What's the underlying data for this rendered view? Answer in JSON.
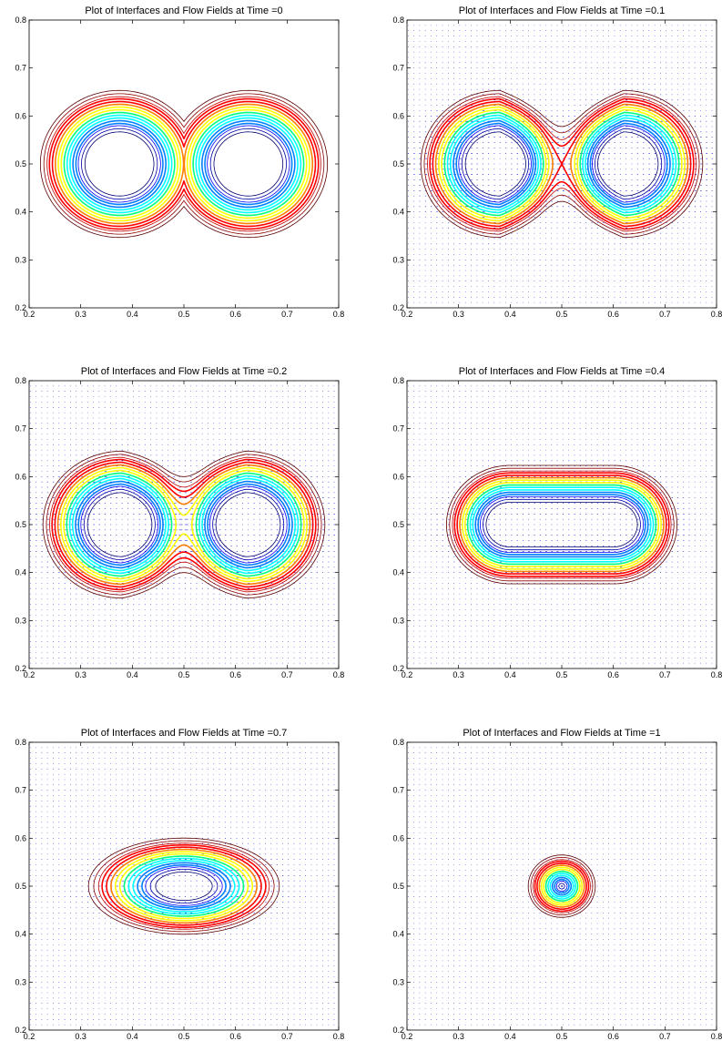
{
  "figure": {
    "colors": {
      "arrow": "#0000d0",
      "contours_outer": [
        "#5a0000",
        "#8b0000",
        "#c00000"
      ],
      "contours_inner": [
        "#00006e",
        "#0000a8",
        "#0000ff"
      ],
      "rainbow": [
        "#ff0000",
        "#ff7f00",
        "#ffff00",
        "#00ff7f",
        "#00ffff",
        "#0080ff"
      ]
    }
  },
  "chart_data": [
    {
      "type": "contour",
      "title": "Plot of Interfaces and Flow Fields at Time =0",
      "time": 0,
      "xlim": [
        0.2,
        0.8
      ],
      "ylim": [
        0.2,
        0.8
      ],
      "xticks": [
        "0.2",
        "0.3",
        "0.4",
        "0.5",
        "0.6",
        "0.7",
        "0.8"
      ],
      "yticks": [
        "0.2",
        "0.3",
        "0.4",
        "0.5",
        "0.6",
        "0.7",
        "0.8"
      ],
      "interface": {
        "shape": "two-circles",
        "centers": [
          [
            0.375,
            0.5
          ],
          [
            0.625,
            0.5
          ]
        ],
        "radius": 0.11,
        "band_half_width": 0.027
      },
      "flow_field": false
    },
    {
      "type": "contour",
      "title": "Plot of Interfaces and Flow Fields at Time =0.1",
      "time": 0.1,
      "xlim": [
        0.2,
        0.8
      ],
      "ylim": [
        0.2,
        0.8
      ],
      "xticks": [
        "0.2",
        "0.3",
        "0.4",
        "0.5",
        "0.6",
        "0.7",
        "0.8"
      ],
      "yticks": [
        "0.2",
        "0.3",
        "0.4",
        "0.5",
        "0.6",
        "0.7",
        "0.8"
      ],
      "interface": {
        "shape": "peanut",
        "centers": [
          [
            0.38,
            0.5
          ],
          [
            0.62,
            0.5
          ]
        ],
        "radius": 0.11,
        "band_half_width": 0.027,
        "waist_depth": 0.025
      },
      "flow_field": true,
      "flow_strength": 1.0
    },
    {
      "type": "contour",
      "title": "Plot of Interfaces and Flow Fields at Time =0.2",
      "time": 0.2,
      "xlim": [
        0.2,
        0.8
      ],
      "ylim": [
        0.2,
        0.8
      ],
      "xticks": [
        "0.2",
        "0.3",
        "0.4",
        "0.5",
        "0.6",
        "0.7",
        "0.8"
      ],
      "yticks": [
        "0.2",
        "0.3",
        "0.4",
        "0.5",
        "0.6",
        "0.7",
        "0.8"
      ],
      "interface": {
        "shape": "peanut",
        "centers": [
          [
            0.38,
            0.5
          ],
          [
            0.62,
            0.5
          ]
        ],
        "radius": 0.11,
        "band_half_width": 0.027,
        "waist_depth": 0.012
      },
      "flow_field": true,
      "flow_strength": 1.0
    },
    {
      "type": "contour",
      "title": "Plot of Interfaces and Flow Fields at Time =0.4",
      "time": 0.4,
      "xlim": [
        0.2,
        0.8
      ],
      "ylim": [
        0.2,
        0.8
      ],
      "xticks": [
        "0.2",
        "0.3",
        "0.4",
        "0.5",
        "0.6",
        "0.7",
        "0.8"
      ],
      "yticks": [
        "0.2",
        "0.3",
        "0.4",
        "0.5",
        "0.6",
        "0.7",
        "0.8"
      ],
      "interface": {
        "shape": "stadium",
        "x_range": [
          0.4,
          0.6
        ],
        "center_y": 0.5,
        "radius": 0.085,
        "band_half_width": 0.024
      },
      "flow_field": true,
      "flow_strength": 0.85
    },
    {
      "type": "contour",
      "title": "Plot of Interfaces and Flow Fields at Time =0.7",
      "time": 0.7,
      "xlim": [
        0.2,
        0.8
      ],
      "ylim": [
        0.2,
        0.8
      ],
      "xticks": [
        "0.2",
        "0.3",
        "0.4",
        "0.5",
        "0.6",
        "0.7",
        "0.8"
      ],
      "yticks": [
        "0.2",
        "0.3",
        "0.4",
        "0.5",
        "0.6",
        "0.7",
        "0.8"
      ],
      "interface": {
        "shape": "ellipse",
        "center": [
          0.5,
          0.5
        ],
        "radii": [
          0.12,
          0.065
        ],
        "band_half_width": 0.022
      },
      "flow_field": true,
      "flow_strength": 0.65
    },
    {
      "type": "contour",
      "title": "Plot of Interfaces and Flow Fields at Time =1",
      "time": 1,
      "xlim": [
        0.2,
        0.8
      ],
      "ylim": [
        0.2,
        0.8
      ],
      "xticks": [
        "0.2",
        "0.3",
        "0.4",
        "0.5",
        "0.6",
        "0.7",
        "0.8"
      ],
      "yticks": [
        "0.2",
        "0.3",
        "0.4",
        "0.5",
        "0.6",
        "0.7",
        "0.8"
      ],
      "interface": {
        "shape": "circle",
        "center": [
          0.5,
          0.5
        ],
        "radius": 0.033,
        "band_half_width": 0.02
      },
      "flow_field": true,
      "flow_strength": 0.4
    }
  ]
}
